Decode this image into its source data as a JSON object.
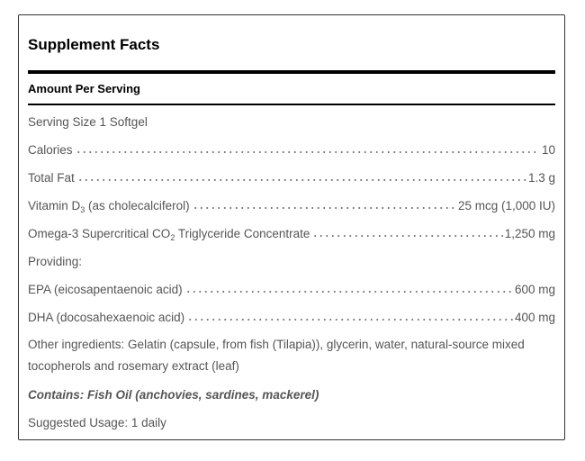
{
  "title": "Supplement Facts",
  "header": "Amount Per Serving",
  "serving_size": "Serving Size 1 Softgel",
  "rows": [
    {
      "label": "Calories",
      "value": "10"
    },
    {
      "label": "Total Fat",
      "value": "1.3 g"
    },
    {
      "label": "Vitamin D",
      "subscript": "3",
      "label_end": " (as cholecalciferol)",
      "value": "25 mcg (1,000 IU)"
    },
    {
      "label": "Omega-3 Supercritical CO",
      "subscript": "2",
      "label_end": " Triglyceride Concentrate",
      "value": "1,250 mg"
    },
    {
      "label": "Providing:"
    },
    {
      "label": "EPA (eicosapentaenoic acid)",
      "value": "600 mg"
    },
    {
      "label": "DHA (docosahexaenoic acid)",
      "value": "400 mg"
    }
  ],
  "other_ingredients": "Other ingredients: Gelatin (capsule, from fish (Tilapia)), glycerin, water, natural-source mixed tocopherols and rosemary extract (leaf)",
  "contains": "Contains: Fish Oil (anchovies, sardines, mackerel)",
  "suggested_usage": "Suggested Usage: 1 daily"
}
